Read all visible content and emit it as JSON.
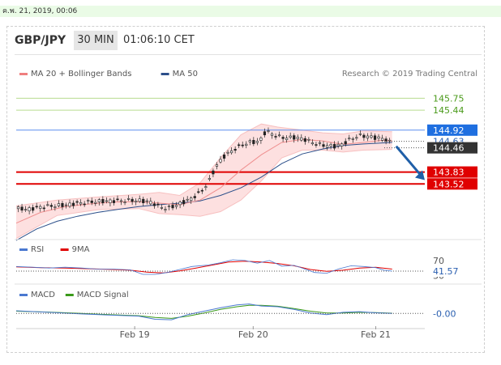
{
  "date_label": "ค.พ. 21, 2019, 00:06",
  "header": {
    "pair": "GBP/JPY",
    "timeframe": "30 MIN",
    "time": "01:06:10 CET"
  },
  "chart_data": [
    {
      "type": "line",
      "name": "price",
      "legend": [
        {
          "label": "MA 20 + Bollinger Bands",
          "color": "#ef7f7f"
        },
        {
          "label": "MA 50",
          "color": "#2c4f8a"
        }
      ],
      "credit": "Research © 2019 Trading Central",
      "ylim": [
        142.2,
        146.2
      ],
      "xlim": [
        0,
        100
      ],
      "x_ticks": [
        {
          "x": 29,
          "label": "Feb 19"
        },
        {
          "x": 58,
          "label": "Feb 20"
        },
        {
          "x": 88,
          "label": "Feb 21"
        }
      ],
      "levels": [
        {
          "value": 145.75,
          "label": "145.75",
          "color": "#b7dc8f",
          "text_color": "#4a9a1a",
          "box": false
        },
        {
          "value": 145.44,
          "label": "145.44",
          "color": "#b7dc8f",
          "text_color": "#4a9a1a",
          "box": false
        },
        {
          "value": 144.92,
          "label": "144.92",
          "color": "#5b8def",
          "text_color": "#ffffff",
          "box": true,
          "box_color": "#1f6fe0"
        },
        {
          "value": 144.63,
          "label": "144.63",
          "color": "#9aa0a6",
          "text_color": "#2a5fb0",
          "box": false,
          "dotted": true
        },
        {
          "value": 144.46,
          "label": "144.46",
          "color": "#333333",
          "text_color": "#ffffff",
          "box": true,
          "box_color": "#333333",
          "dotted": true
        },
        {
          "value": 143.83,
          "label": "143.83",
          "color": "#e00000",
          "text_color": "#ffffff",
          "box": true,
          "box_color": "#e00000"
        },
        {
          "value": 143.52,
          "label": "143.52",
          "color": "#e00000",
          "text_color": "#ffffff",
          "box": true,
          "box_color": "#e00000"
        }
      ],
      "price": [
        [
          0,
          142.88
        ],
        [
          3,
          142.86
        ],
        [
          6,
          142.92
        ],
        [
          9,
          142.95
        ],
        [
          12,
          142.97
        ],
        [
          15,
          143.02
        ],
        [
          18,
          143.05
        ],
        [
          21,
          143.07
        ],
        [
          24,
          143.08
        ],
        [
          27,
          143.09
        ],
        [
          30,
          143.09
        ],
        [
          33,
          143.05
        ],
        [
          35,
          142.93
        ],
        [
          37,
          142.88
        ],
        [
          39,
          142.96
        ],
        [
          41,
          143.05
        ],
        [
          43,
          143.15
        ],
        [
          45,
          143.3
        ],
        [
          47,
          143.55
        ],
        [
          49,
          144.0
        ],
        [
          51,
          144.25
        ],
        [
          53,
          144.4
        ],
        [
          55,
          144.52
        ],
        [
          57,
          144.6
        ],
        [
          59,
          144.62
        ],
        [
          60,
          144.7
        ],
        [
          61,
          144.88
        ],
        [
          62,
          144.86
        ],
        [
          64,
          144.75
        ],
        [
          66,
          144.72
        ],
        [
          68,
          144.73
        ],
        [
          70,
          144.7
        ],
        [
          72,
          144.62
        ],
        [
          74,
          144.55
        ],
        [
          76,
          144.52
        ],
        [
          78,
          144.5
        ],
        [
          80,
          144.56
        ],
        [
          82,
          144.7
        ],
        [
          84,
          144.78
        ],
        [
          86,
          144.76
        ],
        [
          88,
          144.72
        ],
        [
          90,
          144.7
        ],
        [
          91,
          144.65
        ],
        [
          92,
          144.55
        ]
      ],
      "ma20": [
        [
          0,
          142.5
        ],
        [
          6,
          142.78
        ],
        [
          12,
          142.93
        ],
        [
          18,
          143.0
        ],
        [
          24,
          143.05
        ],
        [
          30,
          143.06
        ],
        [
          35,
          143.02
        ],
        [
          40,
          142.98
        ],
        [
          45,
          143.1
        ],
        [
          50,
          143.42
        ],
        [
          55,
          143.88
        ],
        [
          60,
          144.28
        ],
        [
          65,
          144.6
        ],
        [
          70,
          144.68
        ],
        [
          75,
          144.64
        ],
        [
          80,
          144.55
        ],
        [
          85,
          144.6
        ],
        [
          90,
          144.66
        ],
        [
          92,
          144.64
        ]
      ],
      "ma50": [
        [
          0,
          142.05
        ],
        [
          5,
          142.35
        ],
        [
          10,
          142.55
        ],
        [
          15,
          142.68
        ],
        [
          20,
          142.78
        ],
        [
          25,
          142.86
        ],
        [
          30,
          142.93
        ],
        [
          35,
          142.98
        ],
        [
          40,
          143.02
        ],
        [
          45,
          143.08
        ],
        [
          50,
          143.22
        ],
        [
          55,
          143.42
        ],
        [
          60,
          143.7
        ],
        [
          65,
          144.05
        ],
        [
          70,
          144.3
        ],
        [
          75,
          144.43
        ],
        [
          80,
          144.52
        ],
        [
          85,
          144.56
        ],
        [
          92,
          144.6
        ]
      ],
      "bb_upper": [
        [
          0,
          142.95
        ],
        [
          10,
          143.1
        ],
        [
          20,
          143.18
        ],
        [
          30,
          143.25
        ],
        [
          35,
          143.3
        ],
        [
          40,
          143.22
        ],
        [
          45,
          143.55
        ],
        [
          50,
          144.2
        ],
        [
          55,
          144.8
        ],
        [
          60,
          145.08
        ],
        [
          64,
          145.0
        ],
        [
          70,
          144.92
        ],
        [
          75,
          144.85
        ],
        [
          80,
          144.82
        ],
        [
          85,
          144.9
        ],
        [
          92,
          144.88
        ]
      ],
      "bb_lower": [
        [
          0,
          142.1
        ],
        [
          10,
          142.7
        ],
        [
          20,
          142.85
        ],
        [
          30,
          142.88
        ],
        [
          35,
          142.75
        ],
        [
          40,
          142.72
        ],
        [
          45,
          142.68
        ],
        [
          50,
          142.8
        ],
        [
          55,
          143.1
        ],
        [
          60,
          143.6
        ],
        [
          65,
          144.2
        ],
        [
          70,
          144.4
        ],
        [
          75,
          144.4
        ],
        [
          80,
          144.35
        ],
        [
          85,
          144.4
        ],
        [
          92,
          144.42
        ]
      ],
      "forecast_arrow": {
        "from": [
          93,
          144.5
        ],
        "to": [
          100,
          143.62
        ],
        "color": "#1f5fa8"
      }
    },
    {
      "type": "line",
      "name": "rsi",
      "legend": [
        {
          "label": "RSI",
          "color": "#4a78d0"
        },
        {
          "label": "9MA",
          "color": "#e00000"
        }
      ],
      "ylim": [
        20,
        85
      ],
      "levels": [
        {
          "value": 70,
          "label": "70"
        },
        {
          "value": 30,
          "label": "30"
        }
      ],
      "value_label": "41.57",
      "rsi": [
        [
          0,
          54
        ],
        [
          4,
          52
        ],
        [
          8,
          50
        ],
        [
          12,
          52
        ],
        [
          16,
          50
        ],
        [
          20,
          47
        ],
        [
          24,
          47
        ],
        [
          28,
          45
        ],
        [
          31,
          33
        ],
        [
          34,
          33
        ],
        [
          37,
          38
        ],
        [
          40,
          46
        ],
        [
          43,
          54
        ],
        [
          47,
          58
        ],
        [
          50,
          64
        ],
        [
          53,
          72
        ],
        [
          56,
          70
        ],
        [
          59,
          63
        ],
        [
          62,
          70
        ],
        [
          65,
          55
        ],
        [
          68,
          57
        ],
        [
          70,
          50
        ],
        [
          73,
          38
        ],
        [
          76,
          36
        ],
        [
          79,
          48
        ],
        [
          82,
          56
        ],
        [
          85,
          54
        ],
        [
          88,
          51
        ],
        [
          90,
          44
        ],
        [
          92,
          41.57
        ]
      ],
      "ma9": [
        [
          0,
          53
        ],
        [
          6,
          51
        ],
        [
          12,
          50
        ],
        [
          18,
          48
        ],
        [
          24,
          46
        ],
        [
          28,
          44
        ],
        [
          32,
          39
        ],
        [
          36,
          37
        ],
        [
          40,
          42
        ],
        [
          44,
          50
        ],
        [
          48,
          58
        ],
        [
          52,
          66
        ],
        [
          56,
          68
        ],
        [
          60,
          66
        ],
        [
          64,
          62
        ],
        [
          68,
          56
        ],
        [
          72,
          46
        ],
        [
          76,
          41
        ],
        [
          80,
          44
        ],
        [
          84,
          50
        ],
        [
          88,
          52
        ],
        [
          92,
          47
        ]
      ]
    },
    {
      "type": "line",
      "name": "macd",
      "legend": [
        {
          "label": "MACD",
          "color": "#4a78d0"
        },
        {
          "label": "MACD Signal",
          "color": "#3a9a1a"
        }
      ],
      "ylim": [
        -0.6,
        0.55
      ],
      "value_label": "-0.00",
      "macd": [
        [
          0,
          0.12
        ],
        [
          8,
          0.05
        ],
        [
          16,
          -0.02
        ],
        [
          24,
          -0.08
        ],
        [
          30,
          -0.12
        ],
        [
          34,
          -0.26
        ],
        [
          38,
          -0.28
        ],
        [
          42,
          -0.05
        ],
        [
          46,
          0.1
        ],
        [
          50,
          0.25
        ],
        [
          54,
          0.38
        ],
        [
          57,
          0.42
        ],
        [
          60,
          0.33
        ],
        [
          64,
          0.3
        ],
        [
          68,
          0.18
        ],
        [
          72,
          0.02
        ],
        [
          76,
          -0.05
        ],
        [
          80,
          0.05
        ],
        [
          84,
          0.08
        ],
        [
          88,
          0.03
        ],
        [
          92,
          0.0
        ]
      ],
      "signal": [
        [
          0,
          0.1
        ],
        [
          8,
          0.06
        ],
        [
          16,
          0.0
        ],
        [
          24,
          -0.06
        ],
        [
          30,
          -0.1
        ],
        [
          34,
          -0.18
        ],
        [
          38,
          -0.22
        ],
        [
          42,
          -0.12
        ],
        [
          46,
          0.02
        ],
        [
          50,
          0.18
        ],
        [
          54,
          0.3
        ],
        [
          57,
          0.36
        ],
        [
          60,
          0.36
        ],
        [
          64,
          0.32
        ],
        [
          68,
          0.22
        ],
        [
          72,
          0.1
        ],
        [
          76,
          0.02
        ],
        [
          80,
          0.02
        ],
        [
          84,
          0.05
        ],
        [
          88,
          0.04
        ],
        [
          92,
          0.01
        ]
      ]
    }
  ]
}
